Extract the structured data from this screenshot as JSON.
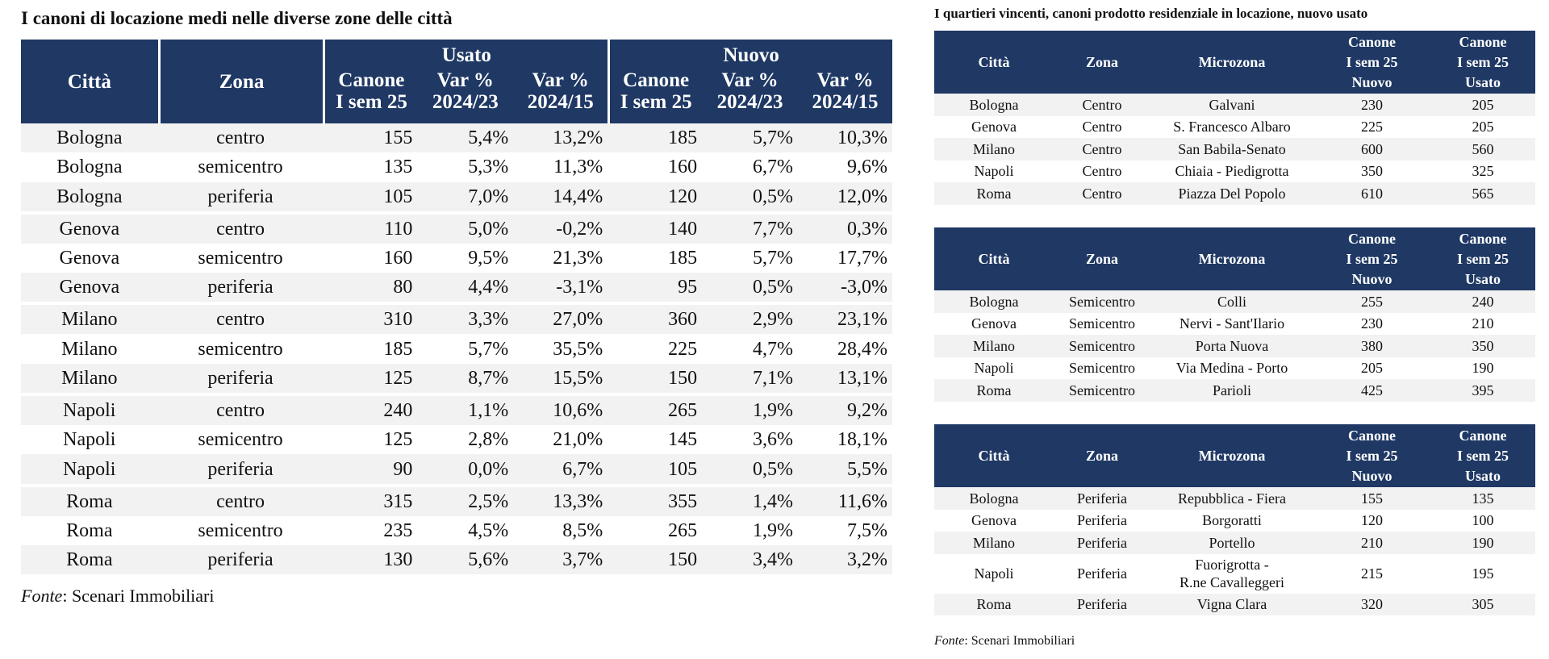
{
  "left": {
    "title": "I canoni di locazione medi nelle diverse zone delle città",
    "headers": {
      "city": "Città",
      "zone": "Zona",
      "usato": "Usato",
      "nuovo": "Nuovo",
      "canone_l1": "Canone",
      "canone_l2": "I sem 25",
      "var_l1": "Var %",
      "var_a_l2": "2024/23",
      "var_b_l2": "2024/15"
    },
    "rows": [
      {
        "city": "Bologna",
        "zone": "centro",
        "u_canone": "155",
        "u_var23": "5,4%",
        "u_var15": "13,2%",
        "n_canone": "185",
        "n_var23": "5,7%",
        "n_var15": "10,3%"
      },
      {
        "city": "Bologna",
        "zone": "semicentro",
        "u_canone": "135",
        "u_var23": "5,3%",
        "u_var15": "11,3%",
        "n_canone": "160",
        "n_var23": "6,7%",
        "n_var15": "9,6%"
      },
      {
        "city": "Bologna",
        "zone": "periferia",
        "u_canone": "105",
        "u_var23": "7,0%",
        "u_var15": "14,4%",
        "n_canone": "120",
        "n_var23": "0,5%",
        "n_var15": "12,0%"
      },
      {
        "city": "Genova",
        "zone": "centro",
        "u_canone": "110",
        "u_var23": "5,0%",
        "u_var15": "-0,2%",
        "n_canone": "140",
        "n_var23": "7,7%",
        "n_var15": "0,3%"
      },
      {
        "city": "Genova",
        "zone": "semicentro",
        "u_canone": "160",
        "u_var23": "9,5%",
        "u_var15": "21,3%",
        "n_canone": "185",
        "n_var23": "5,7%",
        "n_var15": "17,7%"
      },
      {
        "city": "Genova",
        "zone": "periferia",
        "u_canone": "80",
        "u_var23": "4,4%",
        "u_var15": "-3,1%",
        "n_canone": "95",
        "n_var23": "0,5%",
        "n_var15": "-3,0%"
      },
      {
        "city": "Milano",
        "zone": "centro",
        "u_canone": "310",
        "u_var23": "3,3%",
        "u_var15": "27,0%",
        "n_canone": "360",
        "n_var23": "2,9%",
        "n_var15": "23,1%"
      },
      {
        "city": "Milano",
        "zone": "semicentro",
        "u_canone": "185",
        "u_var23": "5,7%",
        "u_var15": "35,5%",
        "n_canone": "225",
        "n_var23": "4,7%",
        "n_var15": "28,4%"
      },
      {
        "city": "Milano",
        "zone": "periferia",
        "u_canone": "125",
        "u_var23": "8,7%",
        "u_var15": "15,5%",
        "n_canone": "150",
        "n_var23": "7,1%",
        "n_var15": "13,1%"
      },
      {
        "city": "Napoli",
        "zone": "centro",
        "u_canone": "240",
        "u_var23": "1,1%",
        "u_var15": "10,6%",
        "n_canone": "265",
        "n_var23": "1,9%",
        "n_var15": "9,2%"
      },
      {
        "city": "Napoli",
        "zone": "semicentro",
        "u_canone": "125",
        "u_var23": "2,8%",
        "u_var15": "21,0%",
        "n_canone": "145",
        "n_var23": "3,6%",
        "n_var15": "18,1%"
      },
      {
        "city": "Napoli",
        "zone": "periferia",
        "u_canone": "90",
        "u_var23": "0,0%",
        "u_var15": "6,7%",
        "n_canone": "105",
        "n_var23": "0,5%",
        "n_var15": "5,5%"
      },
      {
        "city": "Roma",
        "zone": "centro",
        "u_canone": "315",
        "u_var23": "2,5%",
        "u_var15": "13,3%",
        "n_canone": "355",
        "n_var23": "1,4%",
        "n_var15": "11,6%"
      },
      {
        "city": "Roma",
        "zone": "semicentro",
        "u_canone": "235",
        "u_var23": "4,5%",
        "u_var15": "8,5%",
        "n_canone": "265",
        "n_var23": "1,9%",
        "n_var15": "7,5%"
      },
      {
        "city": "Roma",
        "zone": "periferia",
        "u_canone": "130",
        "u_var23": "5,6%",
        "u_var15": "3,7%",
        "n_canone": "150",
        "n_var23": "3,4%",
        "n_var15": "3,2%"
      }
    ],
    "source_label": "Fonte",
    "source_text": ": Scenari Immobiliari"
  },
  "right": {
    "title": "I quartieri vincenti, canoni prodotto residenziale in locazione, nuovo usato",
    "headers": {
      "city": "Città",
      "zone": "Zona",
      "micro": "Microzona",
      "canone": "Canone",
      "sem": "I sem 25",
      "nuovo": "Nuovo",
      "usato": "Usato"
    },
    "tables": [
      {
        "rows": [
          {
            "city": "Bologna",
            "zone": "Centro",
            "micro": "Galvani",
            "nuovo": "230",
            "usato": "205"
          },
          {
            "city": "Genova",
            "zone": "Centro",
            "micro": "S. Francesco Albaro",
            "nuovo": "225",
            "usato": "205"
          },
          {
            "city": "Milano",
            "zone": "Centro",
            "micro": "San Babila-Senato",
            "nuovo": "600",
            "usato": "560"
          },
          {
            "city": "Napoli",
            "zone": "Centro",
            "micro": "Chiaia - Piedigrotta",
            "nuovo": "350",
            "usato": "325"
          },
          {
            "city": "Roma",
            "zone": "Centro",
            "micro": "Piazza Del Popolo",
            "nuovo": "610",
            "usato": "565"
          }
        ]
      },
      {
        "rows": [
          {
            "city": "Bologna",
            "zone": "Semicentro",
            "micro": "Colli",
            "nuovo": "255",
            "usato": "240"
          },
          {
            "city": "Genova",
            "zone": "Semicentro",
            "micro": "Nervi - Sant'Ilario",
            "nuovo": "230",
            "usato": "210"
          },
          {
            "city": "Milano",
            "zone": "Semicentro",
            "micro": "Porta Nuova",
            "nuovo": "380",
            "usato": "350"
          },
          {
            "city": "Napoli",
            "zone": "Semicentro",
            "micro": "Via Medina - Porto",
            "nuovo": "205",
            "usato": "190"
          },
          {
            "city": "Roma",
            "zone": "Semicentro",
            "micro": "Parioli",
            "nuovo": "425",
            "usato": "395"
          }
        ]
      },
      {
        "rows": [
          {
            "city": "Bologna",
            "zone": "Periferia",
            "micro": "Repubblica - Fiera",
            "nuovo": "155",
            "usato": "135"
          },
          {
            "city": "Genova",
            "zone": "Periferia",
            "micro": "Borgoratti",
            "nuovo": "120",
            "usato": "100"
          },
          {
            "city": "Milano",
            "zone": "Periferia",
            "micro": "Portello",
            "nuovo": "210",
            "usato": "190"
          },
          {
            "city": "Napoli",
            "zone": "Periferia",
            "micro": "Fuorigrotta -",
            "micro2": "R.ne Cavalleggeri",
            "nuovo": "215",
            "usato": "195"
          },
          {
            "city": "Roma",
            "zone": "Periferia",
            "micro": "Vigna Clara",
            "nuovo": "320",
            "usato": "305"
          }
        ]
      }
    ],
    "source_label": "Fonte",
    "source_text": ": Scenari Immobiliari"
  }
}
